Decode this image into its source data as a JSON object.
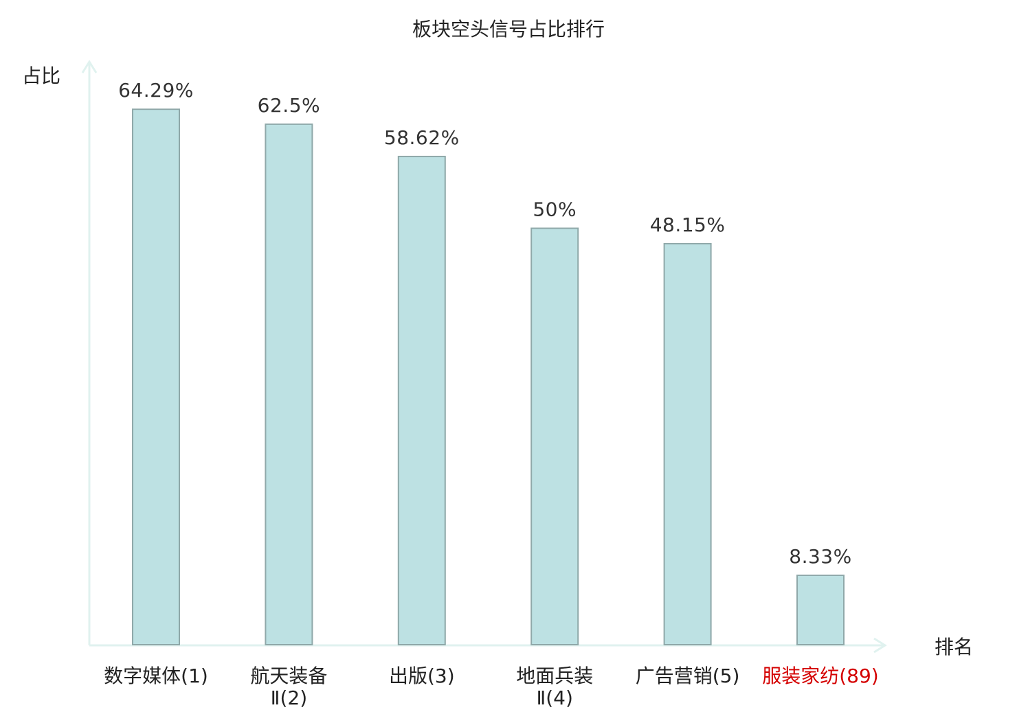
{
  "chart_data": {
    "type": "bar",
    "title": "板块空头信号占比排行",
    "ylabel": "占比",
    "xlabel": "排名",
    "ylim": [
      0,
      70
    ],
    "grid": false,
    "categories": [
      {
        "name_lines": [
          "数字媒体(1)"
        ],
        "value": 64.29,
        "value_label": "64.29%",
        "highlight": false
      },
      {
        "name_lines": [
          "航天装备",
          "Ⅱ(2)"
        ],
        "value": 62.5,
        "value_label": "62.5%",
        "highlight": false
      },
      {
        "name_lines": [
          "出版(3)"
        ],
        "value": 58.62,
        "value_label": "58.62%",
        "highlight": false
      },
      {
        "name_lines": [
          "地面兵装",
          "Ⅱ(4)"
        ],
        "value": 50,
        "value_label": "50%",
        "highlight": false
      },
      {
        "name_lines": [
          "广告营销(5)"
        ],
        "value": 48.15,
        "value_label": "48.15%",
        "highlight": false
      },
      {
        "name_lines": [
          "服装家纺(89)"
        ],
        "value": 8.33,
        "value_label": "8.33%",
        "highlight": true
      }
    ],
    "colors": {
      "bar_fill": "#bde1e3",
      "bar_stroke": "#8fa8a9",
      "axis": "#e0f2ef",
      "highlight_text": "#d40000"
    }
  }
}
